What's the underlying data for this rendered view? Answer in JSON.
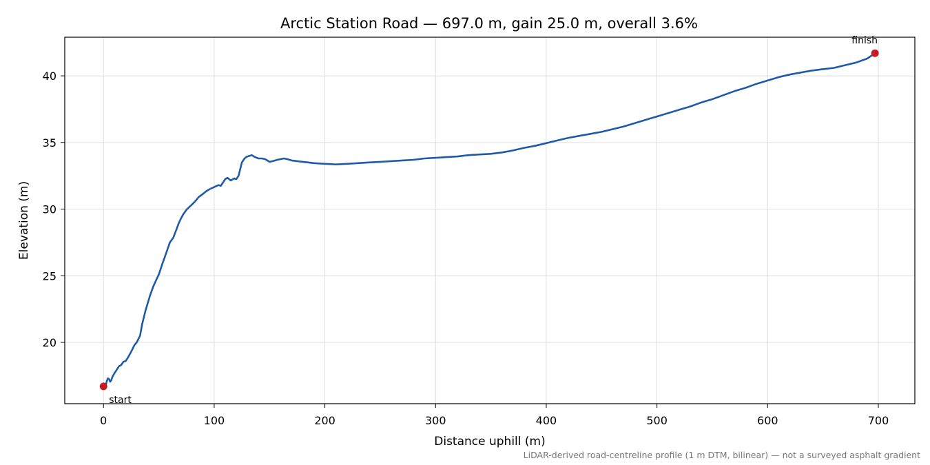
{
  "chart_data": {
    "type": "line",
    "title": "Arctic Station Road — 697.0 m, gain 25.0 m, overall 3.6%",
    "xlabel": "Distance uphill (m)",
    "ylabel": "Elevation (m)",
    "xlim": [
      -35,
      733
    ],
    "ylim": [
      15.4,
      42.9
    ],
    "xticks": [
      0,
      100,
      200,
      300,
      400,
      500,
      600,
      700
    ],
    "yticks": [
      20,
      25,
      30,
      35,
      40
    ],
    "xtick_labels": [
      "0",
      "100",
      "200",
      "300",
      "400",
      "500",
      "600",
      "700"
    ],
    "ytick_labels": [
      "20",
      "25",
      "30",
      "35",
      "40"
    ],
    "grid": true,
    "line_color": "#1f5aa8",
    "marker_color": "#c41e24",
    "series": [
      {
        "x": [
          0,
          2,
          3,
          4,
          5,
          6,
          7,
          8,
          10,
          12,
          14,
          16,
          18,
          20,
          22,
          25,
          28,
          30,
          33,
          35,
          38,
          40,
          42,
          45,
          48,
          50,
          53,
          56,
          60,
          63,
          66,
          68,
          70,
          72,
          75,
          78,
          80,
          83,
          86,
          90,
          93,
          96,
          100,
          104,
          106,
          108,
          110,
          112,
          115,
          118,
          120,
          122,
          125,
          127,
          128,
          130,
          132,
          134,
          135,
          137,
          140,
          143,
          146,
          148,
          150,
          153,
          157,
          160,
          163,
          166,
          170,
          175,
          180,
          185,
          190,
          200,
          210,
          220,
          230,
          240,
          250,
          260,
          270,
          280,
          290,
          300,
          310,
          320,
          330,
          340,
          350,
          360,
          370,
          380,
          390,
          400,
          410,
          420,
          430,
          440,
          450,
          460,
          470,
          480,
          490,
          500,
          510,
          520,
          530,
          540,
          550,
          560,
          570,
          580,
          590,
          600,
          610,
          620,
          630,
          640,
          650,
          660,
          670,
          680,
          690,
          697
        ],
        "y": [
          16.7,
          16.8,
          17.1,
          17.3,
          17.25,
          17.05,
          17.15,
          17.4,
          17.7,
          17.95,
          18.2,
          18.3,
          18.55,
          18.6,
          18.85,
          19.3,
          19.8,
          20.0,
          20.5,
          21.4,
          22.4,
          22.95,
          23.5,
          24.2,
          24.75,
          25.1,
          25.85,
          26.55,
          27.5,
          27.85,
          28.5,
          28.95,
          29.3,
          29.6,
          29.95,
          30.2,
          30.35,
          30.6,
          30.9,
          31.15,
          31.35,
          31.5,
          31.65,
          31.8,
          31.75,
          32.0,
          32.25,
          32.35,
          32.15,
          32.3,
          32.25,
          32.5,
          33.5,
          33.75,
          33.85,
          33.95,
          34.0,
          34.05,
          34.0,
          33.9,
          33.8,
          33.8,
          33.75,
          33.65,
          33.55,
          33.6,
          33.7,
          33.75,
          33.8,
          33.75,
          33.65,
          33.6,
          33.55,
          33.5,
          33.45,
          33.4,
          33.35,
          33.4,
          33.45,
          33.5,
          33.55,
          33.6,
          33.65,
          33.7,
          33.8,
          33.85,
          33.9,
          33.95,
          34.05,
          34.1,
          34.15,
          34.25,
          34.4,
          34.6,
          34.75,
          34.95,
          35.15,
          35.35,
          35.5,
          35.65,
          35.8,
          36.0,
          36.2,
          36.45,
          36.7,
          36.95,
          37.2,
          37.45,
          37.7,
          38.0,
          38.25,
          38.55,
          38.85,
          39.1,
          39.4,
          39.65,
          39.9,
          40.1,
          40.25,
          40.4,
          40.5,
          40.6,
          40.8,
          41.0,
          41.3,
          41.7
        ]
      }
    ],
    "annotations": [
      {
        "text": "start",
        "x": 0,
        "y": 16.7
      },
      {
        "text": "finish",
        "x": 697,
        "y": 41.7
      }
    ],
    "footnote": "LiDAR-derived road-centreline profile (1 m DTM, bilinear) — not a surveyed asphalt gradient"
  }
}
